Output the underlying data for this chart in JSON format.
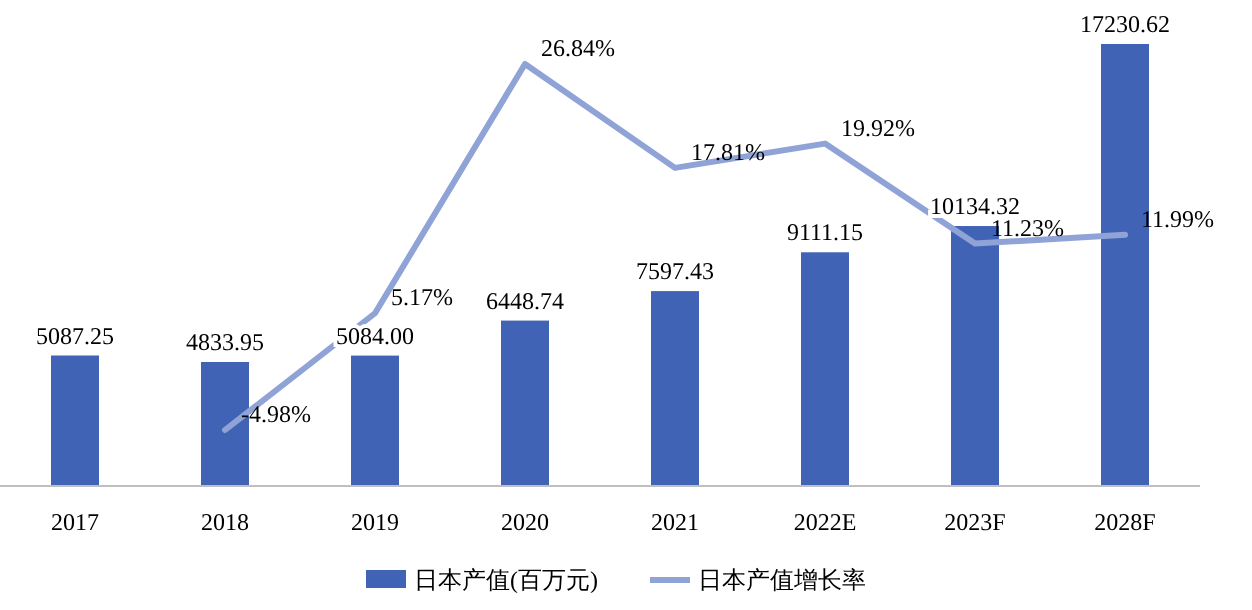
{
  "chart_data": {
    "type": "bar",
    "categories": [
      "2017",
      "2018",
      "2019",
      "2020",
      "2021",
      "2022E",
      "2023F",
      "2028F"
    ],
    "series": [
      {
        "name": "日本产值(百万元)",
        "color": "#4163b5",
        "values": [
          5087.25,
          4833.95,
          5084.0,
          6448.74,
          7597.43,
          9111.15,
          10134.32,
          17230.62
        ],
        "value_labels": [
          "5087.25",
          "4833.95",
          "5084.00",
          "6448.74",
          "7597.43",
          "9111.15",
          "10134.32",
          "17230.62"
        ]
      },
      {
        "name": "日本产值增长率",
        "type": "line",
        "axis": "y2",
        "color": "#8fa3d6",
        "values": [
          null,
          -4.98,
          5.17,
          26.84,
          17.81,
          19.92,
          11.23,
          11.99
        ],
        "value_labels": [
          null,
          "-4.98%",
          "5.17%",
          "26.84%",
          "17.81%",
          "19.92%",
          "11.23%",
          "11.99%"
        ]
      }
    ],
    "legend": "bottom",
    "grid": false
  }
}
